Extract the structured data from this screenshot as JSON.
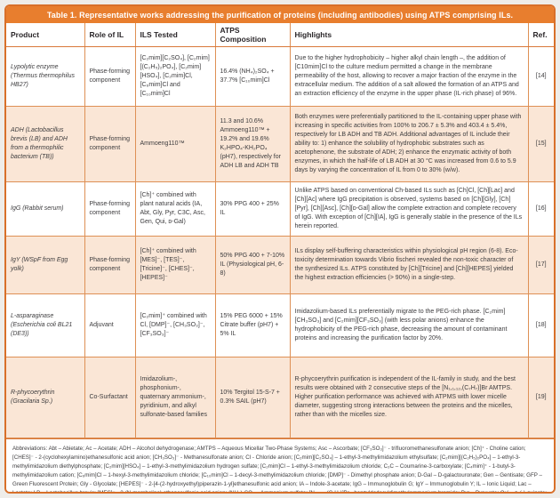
{
  "title": "Table 1. Representative works addressing the purification of proteins (including antibodies) using ATPS comprising ILs.",
  "columns": [
    "Product",
    "Role of IL",
    "ILS Tested",
    "ATPS Composition",
    "Highlights",
    "Ref."
  ],
  "rows": [
    {
      "product": "Lypolytic enzyme (Thermus thermophilus HB27)",
      "role": "Phase-forming component",
      "ils": "[C₂mim][C₂SO₄], [C₂mim][(C₂H₅)₂PO₄], [C₂mim][HSO₄], [C₂mim]Cl, [C₆mim]Cl and [C₁₀mim]Cl",
      "atps": "16.4% (NH₄)₂SO₄ + 37.7% [C₁₀mim]Cl",
      "highlights": "Due to the higher hydrophobicity – higher alkyl chain length –, the addition of [C10mim]Cl to the culture medium permitted a change in the membrane permeability of the host, allowing to recover a major fraction of the enzyme in the extracellular medium. The addition of a salt allowed the formation of an ATPS and an extraction efficiency of the enzyme in the upper phase (IL-rich phase) of 96%.",
      "ref": "[14]"
    },
    {
      "product": "ADH (Lactobacillus brevis (LB) and ADH from a thermophilic bacterium (TB))",
      "role": "Phase-forming component",
      "ils": "Ammoeng110™",
      "atps": "11.3 and 10.6% Ammoeng110™ + 19.2% and 19.6% K₂HPO₄-KH₂PO₄ (pH7), respectively for ADH LB and ADH TB",
      "highlights": "Both enzymes were preferentially partitioned to the IL-containing upper phase with increasing in specific activities from 100% to 206.7 ± 5.3% and 403.4 ± 5.4%, respectively for LB ADH and TB ADH. Additional advantages of IL include their ability to: 1) enhance the solubility of hydrophobic substrates such as acetophenone, the substrate of ADH; 2) enhance the enzymatic activity of both enzymes, in which the half-life of LB ADH at 30 °C was increased from 0.6 to 5.9 days by varying the concentration of IL from 0 to 30% (w/w).",
      "ref": "[15]"
    },
    {
      "product": "IgG (Rabbit serum)",
      "role": "Phase-forming component",
      "ils": "[Ch]⁺ combined with plant natural acids (IA, Abt, Gly, Pyr, C3C, Asc, Gen, Qui, ᴅ-Gal)",
      "atps": "30% PPG 400 + 25% IL",
      "highlights": "Unlike ATPS based on conventional Ch-based ILs such as [Ch]Cl, [Ch][Lac] and [Ch][Ac] where IgG precipitation is observed, systems based on [Ch][Gly], [Ch][Pyr], [Ch][Asc], [Ch][ᴅ-Gal] allow the complete extraction and complete recovery of IgG. With exception of [Ch][IA], IgG is generally stable in the presence of the ILs herein reported.",
      "ref": "[16]"
    },
    {
      "product": "IgY (WSpF from Egg yolk)",
      "role": "Phase-forming component",
      "ils": "[Ch]⁺ combined with [MES]⁻, [TES]⁻, [Tricine]⁻, [CHES]⁻, [HEPES]⁻",
      "atps": "50% PPG 400 + 7-10% IL (Physiological pH, 6-8)",
      "highlights": "ILs display self-buffering characteristics within physiological pH region (6-8). Eco-toxicity determination towards Vibrio fischeri revealed the non-toxic character of the synthesized ILs. ATPS constituted by [Ch][Tricine] and [Ch][HEPES] yielded the highest extraction efficiencies (> 90%) in a single-step.",
      "ref": "[17]"
    },
    {
      "product": "L-asparaginase (Escherichia coli BL21 (DE3))",
      "role": "Adjuvant",
      "ils": "[C₂mim]⁺ combined with Cl, [DMP]⁻, [CH₃SO₃]⁻, [CF₃SO₃]⁻",
      "atps": "15% PEG 6000 + 15% Citrate buffer (pH7) + 5% IL",
      "highlights": "Imidazolium-based ILs preferentially migrate to the PEG-rich phase. [C₂mim][CH₃SO₃] and [C₂mim][CF₃SO₃] (with less polar anions) enhance the hydrophobicity of the PEG-rich phase, decreasing the amount of contaminant proteins and increasing the purification factor by 20%.",
      "ref": "[18]"
    },
    {
      "product": "R-phycoerythrin (Gracilaria Sp.)",
      "role": "Co-Surfactant",
      "ils": "Imidazolium-, phosphonium-, quaternary ammonium-, pyridinium, and alkyl sulfonate-based families",
      "atps": "10% Tergitol 15-S-7 + 0.3% SAIL (pH7)",
      "highlights": "R-phycoerythrin purification is independent of the IL-family in study, and the best results were obtained with 2 consecutive steps of the [N₁,₁,₁₂,(C₇H₇)]Br AMTPS. Higher purification performance was achieved with ATPMS with lower micelle diameter, suggesting strong interactions between the proteins and the micelles, rather than with the micelles size.",
      "ref": "[19]"
    }
  ],
  "footer": "Abbreviations: Abt – Abietate; Ac – Acetate; ADH – Alcohol dehydrogenase; AMTPS – Aqueous Micellar Two-Phase Systems; Asc – Ascorbate; [CF₃SO₃]⁻ - trifluoromethanesulfonate anion; [Ch]⁺ - Choline cation; [CHES]⁻ - 2-(cyclohexylamino)ethanesulfonic acid anion; [CH₃SO₃]⁻ - Methanesulfonate anion; Cl - Chloride anion; [C₂mim][C₂SO₄] – 1-ethyl-3-methylimidazolium ethylsulfate; [C₂mim][(C₂H₅)₂PO₄] – 1-ethyl-3-methylimidazolium diethylphosphate; [C₂mim][HSO₄] – 1-ethyl-3-methylimidazolium hydrogen sulfate; [C₂mim]Cl – 1-ethyl-3-methylimidazolium chloride; C₃C – Coumarine-3-carboxylate; [C₄mim]⁺ - 1-butyl-3-methylimidazolium cation; [C₆mim]Cl – 1-hexyl-3-methylimidazolium chloride; [C₁₀mim]Cl – 1-decyl-3-methylimidazolium chloride; [DMP]⁻ - Dimethyl phosphate anion; D-Gal – D-galactouronate; Gen – Gentisate; GFP – Green Fluorescent Protein; Gly - Glycolate; [HEPES]⁻ - 2-[4-(2-hydroxyethyl)piperazin-1-yl]ethanesulfonic acid anion; IA – Indole-3-acetate; IgG – Immunoglobulin G; IgY – Immunoglobulin Y; IL – Ionic Liquid; Lac – Lactate; LB – Lactobacillus brevis; [MES]⁻ - 2-(N-morpholino) ethanesulfonic acid anion; (NH₄)₂SO₄ – Ammonium sulfate; [N₁,₁,₁₂,(C₇H₇)]Br - benzyldodecyldimethylammonium bromide; Pyr – Pyruvate; Qui – ᴅ-(-)-quinate; SAIL – Surface Active Ionic Liquid; TB – Thermophilic bacterium; [TES]⁻ - 2-{2-hydroxy-1,1-[bis(hydroxymethyl)ethyl]amino}ethane sulfonic acid anion; [Tricine]⁻ - N-[tris(hydroxymethyl)methyl]glycine anion; WSpF – Water-soluble protein fraction.",
  "accent_color": "#e87e2e",
  "row_alt_color": "#fae6d6"
}
